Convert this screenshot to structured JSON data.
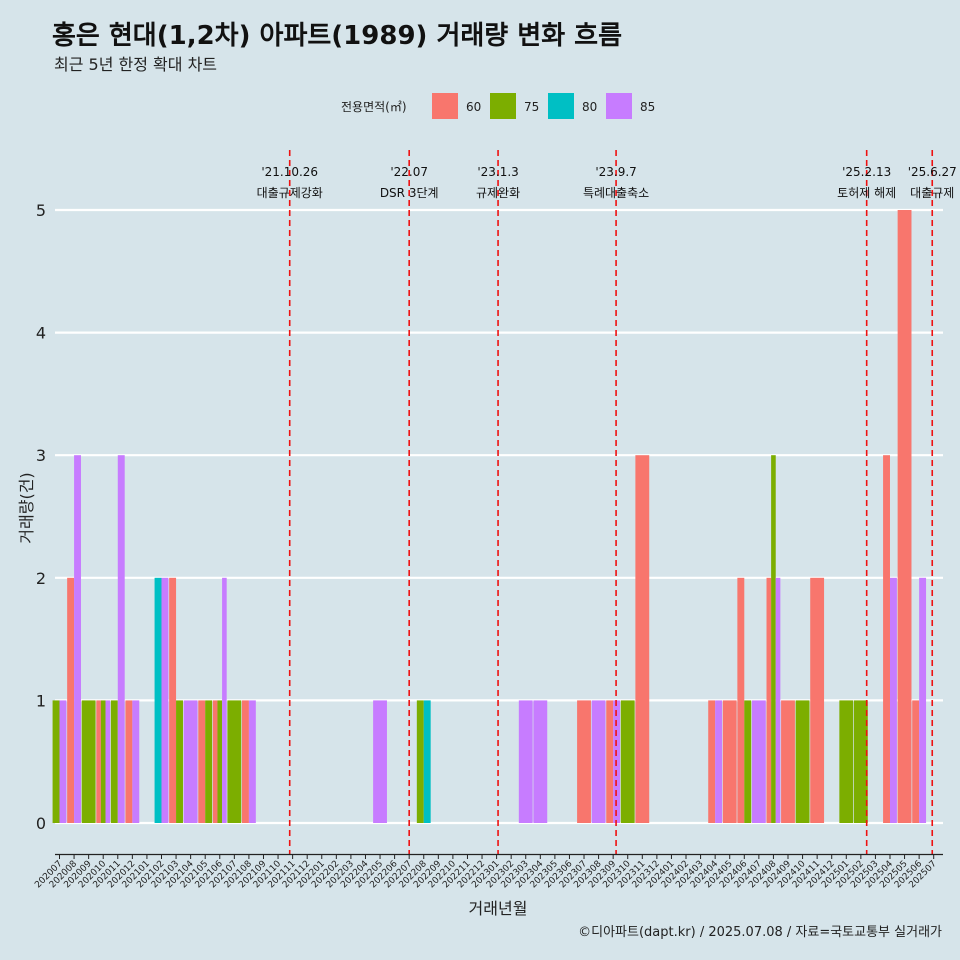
{
  "chart_data": {
    "type": "bar",
    "title": "홍은 현대(1,2차) 아파트(1989) 거래량 변화 흐름",
    "subtitle": "최근 5년 한정 확대 차트",
    "xlabel": "거래년월",
    "ylabel": "거래량(건)",
    "caption": "©디아파트(dapt.kr) / 2025.07.08 / 자료=국토교통부 실거래가",
    "legend": {
      "title": "전용면적(㎡)",
      "position": "top",
      "items": [
        {
          "name": "60",
          "color": "#f8766d"
        },
        {
          "name": "75",
          "color": "#7cae00"
        },
        {
          "name": "80",
          "color": "#00bfc4"
        },
        {
          "name": "85",
          "color": "#c77cff"
        }
      ]
    },
    "ylim": [
      0,
      5
    ],
    "yticks": [
      0,
      1,
      2,
      3,
      4,
      5
    ],
    "months": [
      "202007",
      "202008",
      "202009",
      "202010",
      "202011",
      "202012",
      "202101",
      "202102",
      "202103",
      "202104",
      "202105",
      "202106",
      "202107",
      "202108",
      "202109",
      "202110",
      "202111",
      "202112",
      "202201",
      "202202",
      "202203",
      "202204",
      "202205",
      "202206",
      "202207",
      "202208",
      "202209",
      "202210",
      "202211",
      "202212",
      "202301",
      "202302",
      "202303",
      "202304",
      "202305",
      "202306",
      "202307",
      "202308",
      "202309",
      "202310",
      "202311",
      "202312",
      "202401",
      "202402",
      "202403",
      "202404",
      "202405",
      "202406",
      "202407",
      "202408",
      "202409",
      "202410",
      "202411",
      "202412",
      "202501",
      "202502",
      "202503",
      "202504",
      "202505",
      "202506",
      "202507"
    ],
    "data": [
      {
        "month": "202007",
        "bars": [
          {
            "size": "75",
            "value": 1
          },
          {
            "size": "85",
            "value": 1
          }
        ]
      },
      {
        "month": "202008",
        "bars": [
          {
            "size": "60",
            "value": 2
          },
          {
            "size": "85",
            "value": 3
          }
        ]
      },
      {
        "month": "202009",
        "bars": [
          {
            "size": "75",
            "value": 1
          }
        ]
      },
      {
        "month": "202010",
        "bars": [
          {
            "size": "60",
            "value": 1
          },
          {
            "size": "75",
            "value": 1
          },
          {
            "size": "85",
            "value": 1
          }
        ]
      },
      {
        "month": "202011",
        "bars": [
          {
            "size": "75",
            "value": 1
          },
          {
            "size": "85",
            "value": 3
          }
        ]
      },
      {
        "month": "202012",
        "bars": [
          {
            "size": "60",
            "value": 1
          },
          {
            "size": "85",
            "value": 1
          }
        ]
      },
      {
        "month": "202102",
        "bars": [
          {
            "size": "80",
            "value": 2
          },
          {
            "size": "85",
            "value": 2
          }
        ]
      },
      {
        "month": "202103",
        "bars": [
          {
            "size": "60",
            "value": 2
          },
          {
            "size": "75",
            "value": 1
          }
        ]
      },
      {
        "month": "202104",
        "bars": [
          {
            "size": "85",
            "value": 1
          }
        ]
      },
      {
        "month": "202105",
        "bars": [
          {
            "size": "60",
            "value": 1
          },
          {
            "size": "75",
            "value": 1
          }
        ]
      },
      {
        "month": "202106",
        "bars": [
          {
            "size": "60",
            "value": 1
          },
          {
            "size": "75",
            "value": 1
          },
          {
            "size": "85",
            "value": 2
          }
        ]
      },
      {
        "month": "202107",
        "bars": [
          {
            "size": "75",
            "value": 1
          }
        ]
      },
      {
        "month": "202108",
        "bars": [
          {
            "size": "60",
            "value": 1
          },
          {
            "size": "85",
            "value": 1
          }
        ]
      },
      {
        "month": "202205",
        "bars": [
          {
            "size": "85",
            "value": 1
          }
        ]
      },
      {
        "month": "202208",
        "bars": [
          {
            "size": "75",
            "value": 1
          },
          {
            "size": "80",
            "value": 1
          }
        ]
      },
      {
        "month": "202303",
        "bars": [
          {
            "size": "85",
            "value": 1
          }
        ]
      },
      {
        "month": "202304",
        "bars": [
          {
            "size": "85",
            "value": 1
          }
        ]
      },
      {
        "month": "202307",
        "bars": [
          {
            "size": "60",
            "value": 1
          }
        ]
      },
      {
        "month": "202308",
        "bars": [
          {
            "size": "85",
            "value": 1
          }
        ]
      },
      {
        "month": "202309",
        "bars": [
          {
            "size": "60",
            "value": 1
          },
          {
            "size": "85",
            "value": 1
          }
        ]
      },
      {
        "month": "202310",
        "bars": [
          {
            "size": "75",
            "value": 1
          }
        ]
      },
      {
        "month": "202311",
        "bars": [
          {
            "size": "60",
            "value": 3
          }
        ]
      },
      {
        "month": "202404",
        "bars": [
          {
            "size": "60",
            "value": 1
          },
          {
            "size": "85",
            "value": 1
          }
        ]
      },
      {
        "month": "202405",
        "bars": [
          {
            "size": "60",
            "value": 1
          }
        ]
      },
      {
        "month": "202406",
        "bars": [
          {
            "size": "60",
            "value": 2
          },
          {
            "size": "75",
            "value": 1
          }
        ]
      },
      {
        "month": "202407",
        "bars": [
          {
            "size": "85",
            "value": 1
          }
        ]
      },
      {
        "month": "202408",
        "bars": [
          {
            "size": "60",
            "value": 2
          },
          {
            "size": "75",
            "value": 3
          },
          {
            "size": "85",
            "value": 2
          }
        ]
      },
      {
        "month": "202409",
        "bars": [
          {
            "size": "60",
            "value": 1
          }
        ]
      },
      {
        "month": "202410",
        "bars": [
          {
            "size": "75",
            "value": 1
          }
        ]
      },
      {
        "month": "202411",
        "bars": [
          {
            "size": "60",
            "value": 2
          }
        ]
      },
      {
        "month": "202501",
        "bars": [
          {
            "size": "75",
            "value": 1
          }
        ]
      },
      {
        "month": "202502",
        "bars": [
          {
            "size": "75",
            "value": 1
          }
        ]
      },
      {
        "month": "202504",
        "bars": [
          {
            "size": "60",
            "value": 3
          },
          {
            "size": "85",
            "value": 2
          }
        ]
      },
      {
        "month": "202505",
        "bars": [
          {
            "size": "60",
            "value": 5
          }
        ]
      },
      {
        "month": "202506",
        "bars": [
          {
            "size": "60",
            "value": 1
          },
          {
            "size": "85",
            "value": 2
          }
        ]
      }
    ],
    "events": [
      {
        "date_label": "'21.10.26",
        "text": "대출규제강화",
        "month": "202110.8"
      },
      {
        "date_label": "'22.07",
        "text": "DSR 3단계",
        "month": "202207"
      },
      {
        "date_label": "'23.1.3",
        "text": "규제완화",
        "month": "202301.1"
      },
      {
        "date_label": "'23.9.7",
        "text": "특례대출축소",
        "month": "202309.2"
      },
      {
        "date_label": "'25.2.13",
        "text": "토허제 해제",
        "month": "202502.4"
      },
      {
        "date_label": "'25.6.27",
        "text": "대출규제",
        "month": "202506.9"
      }
    ]
  }
}
